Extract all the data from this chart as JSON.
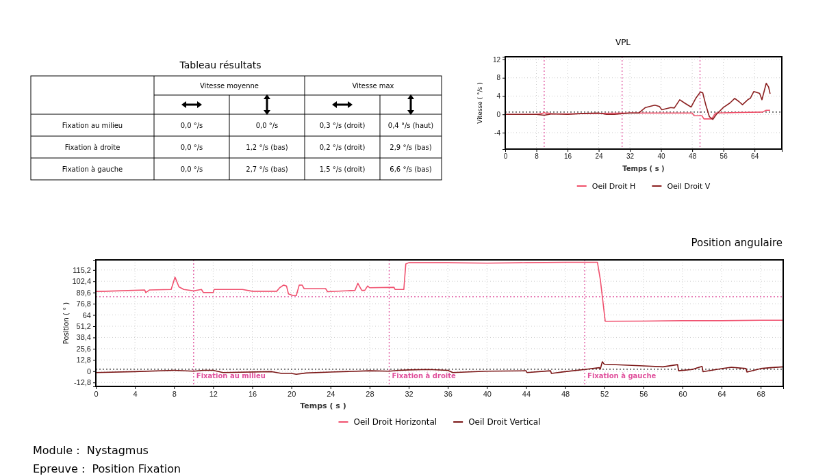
{
  "chart_data": [
    {
      "type": "other",
      "title": "Tableau résultats",
      "annotations": [
        "Vitesse moyenne",
        "Vitesse max",
        "Fixation au milieu",
        "0,0 °/s",
        "0,0 °/s",
        "0,3 °/s (droit)",
        "0,4 °/s (haut)",
        "Fixation à droite",
        "0,0 °/s",
        "1,2 °/s (bas)",
        "0,2 °/s (droit)",
        "2,9 °/s (bas)",
        "Fixation à gauche",
        "0,0 °/s",
        "2,7 °/s (bas)",
        "1,5 °/s (droit)",
        "6,6 °/s (bas)"
      ]
    },
    {
      "type": "line",
      "title": "VPL",
      "xlabel": "Temps ( s )",
      "ylabel": "Vitesse ( °/s )",
      "xlim": [
        0,
        71
      ],
      "ylim": [
        -7.6,
        12.6
      ],
      "xticks": [
        0,
        8,
        16,
        24,
        32,
        40,
        48,
        56,
        64
      ],
      "yticks": [
        -4,
        0,
        4,
        8,
        12
      ],
      "grid": true,
      "legend": "bottom",
      "line_style": "solid",
      "ref_lines": [
        {
          "axis": "x",
          "value": 10,
          "color": "#e0509c",
          "line_style": "dotted"
        },
        {
          "axis": "x",
          "value": 30,
          "color": "#e0509c",
          "line_style": "dotted"
        },
        {
          "axis": "x",
          "value": 50,
          "color": "#e0509c",
          "line_style": "dotted"
        },
        {
          "axis": "y",
          "value": 0.5,
          "color": "#222222",
          "line_style": "dotted"
        }
      ],
      "series": [
        {
          "name": "Oeil Droit H",
          "color": "#f0506a",
          "x": [
            0,
            8,
            9.5,
            10,
            10.5,
            11,
            12,
            16,
            24,
            32,
            40,
            48,
            48.5,
            50.5,
            51,
            53,
            54,
            60,
            66,
            67,
            68
          ],
          "values": [
            0,
            0,
            0.2,
            0.4,
            0.2,
            0.3,
            0.1,
            0.1,
            0.2,
            0.3,
            0.3,
            0.3,
            -0.3,
            -0.3,
            -1,
            -1,
            0.3,
            0.4,
            0.5,
            0.9,
            0.9
          ]
        },
        {
          "name": "Oeil Droit V",
          "color": "#8b2020",
          "x": [
            0,
            8,
            10,
            12,
            16,
            20,
            24,
            26,
            28,
            32,
            34.3,
            36,
            38.4,
            39.6,
            40.2,
            42.5,
            43.4,
            44.8,
            46,
            47.7,
            48.9,
            50.1,
            50.7,
            51.5,
            52.4,
            53.3,
            54.2,
            56,
            57.7,
            58.9,
            60,
            60.9,
            62.4,
            62.9,
            63.8,
            65.3,
            65.9,
            67,
            67.6,
            68
          ],
          "values": [
            0,
            0,
            -0.2,
            0.1,
            0,
            0.2,
            0.3,
            0,
            0,
            0.3,
            0.3,
            1.5,
            2,
            1.7,
            1,
            1.5,
            1.4,
            3.2,
            2.5,
            1.6,
            3.5,
            4.9,
            4.7,
            2,
            -0.5,
            -1.1,
            0,
            1.5,
            2.5,
            3.5,
            2.8,
            2.1,
            3.3,
            3.5,
            5,
            4.6,
            3.2,
            6.8,
            6,
            4.5
          ]
        }
      ]
    },
    {
      "type": "line",
      "title": "Position angulaire",
      "xlabel": "Temps ( s )",
      "ylabel": "Position ( ° )",
      "xlim": [
        0,
        70.3
      ],
      "ylim": [
        -17.3,
        126.7
      ],
      "xticks": [
        0,
        4,
        8,
        12,
        16,
        20,
        24,
        28,
        32,
        36,
        40,
        44,
        48,
        52,
        56,
        60,
        64,
        68
      ],
      "yticks": [
        {
          "value": -12.8,
          "label": "-12,8"
        },
        0,
        {
          "value": 12.8,
          "label": "12,8"
        },
        {
          "value": 25.6,
          "label": "25,6"
        },
        {
          "value": 38.4,
          "label": "38,4"
        },
        {
          "value": 51.2,
          "label": "51,2"
        },
        64,
        {
          "value": 76.8,
          "label": "76,8"
        },
        {
          "value": 89.6,
          "label": "89,6"
        },
        {
          "value": 102.4,
          "label": "102,4"
        },
        {
          "value": 115.2,
          "label": "115,2"
        }
      ],
      "grid": true,
      "legend": "bottom",
      "line_style": "solid",
      "ref_lines": [
        {
          "axis": "x",
          "value": 10,
          "label": "Fixation au milieu",
          "color": "#e0509c",
          "line_style": "dotted"
        },
        {
          "axis": "x",
          "value": 30,
          "label": "Fixation à droite",
          "color": "#e0509c",
          "line_style": "dotted"
        },
        {
          "axis": "x",
          "value": 50,
          "label": "Fixation à gauche",
          "color": "#e0509c",
          "line_style": "dotted"
        },
        {
          "axis": "y",
          "value": 84.7,
          "color": "#e0509c",
          "line_style": "dotted"
        },
        {
          "axis": "y",
          "value": 2.2,
          "color": "#222222",
          "line_style": "dotted"
        }
      ],
      "annotations": [
        "Module :  Nystagmus",
        "Epreuve :  Position Fixation"
      ],
      "series": [
        {
          "name": "Oeil Droit Horizontal",
          "color": "#f0506e",
          "x": [
            0,
            1,
            5,
            5.1,
            5.5,
            7.7,
            8.1,
            8.5,
            9,
            10,
            10.8,
            11,
            12,
            12.1,
            15,
            16,
            18.5,
            18.8,
            19.2,
            19.5,
            19.7,
            20.2,
            20.5,
            20.8,
            21.1,
            21.3,
            23.5,
            23.7,
            26.5,
            26.8,
            27.2,
            27.5,
            27.8,
            28,
            30.5,
            30.6,
            31.5,
            31.7,
            32,
            36,
            40,
            44,
            48,
            50,
            51.3,
            51.6,
            52.1,
            56,
            60,
            64,
            68,
            70.3
          ],
          "values": [
            90.8,
            91,
            92.5,
            89.5,
            92.5,
            93,
            107,
            96,
            93,
            91.5,
            93,
            89.5,
            89.5,
            93,
            93,
            91,
            91,
            95,
            98,
            97,
            88,
            86,
            86,
            98,
            98,
            94,
            94,
            90.5,
            92,
            100,
            92,
            92,
            97,
            95,
            95.5,
            93,
            93,
            122,
            123.5,
            123.5,
            123,
            123.5,
            124,
            124,
            124,
            104,
            56.8,
            57,
            57.5,
            57.5,
            58,
            58
          ]
        },
        {
          "name": "Oeil Droit Vertical",
          "color": "#7a1515",
          "x": [
            0,
            4,
            8,
            10,
            11,
            12,
            13,
            18,
            19,
            20,
            20.5,
            21.5,
            24,
            28,
            30,
            31,
            32,
            34,
            36,
            36.5,
            40,
            44,
            44.1,
            46.5,
            46.6,
            48,
            50,
            51.5,
            51.6,
            51.8,
            52,
            54,
            56,
            58,
            59.5,
            59.6,
            61,
            62,
            62.1,
            64,
            65,
            66.5,
            66.6,
            68,
            69,
            70.3
          ],
          "values": [
            -1.5,
            -0.5,
            1,
            0,
            1,
            1,
            -1.5,
            -0.5,
            -2.5,
            -2.5,
            -3.5,
            -2,
            -1,
            0.5,
            0,
            1,
            1.5,
            2,
            1,
            -1.5,
            0,
            0.5,
            -1.5,
            0.5,
            -2.5,
            -0.5,
            2,
            4,
            2.5,
            10.8,
            8,
            7,
            6,
            5,
            7.5,
            0.5,
            2,
            5.5,
            -0.5,
            3,
            4.5,
            3,
            -1,
            3,
            4,
            5
          ]
        }
      ]
    }
  ]
}
